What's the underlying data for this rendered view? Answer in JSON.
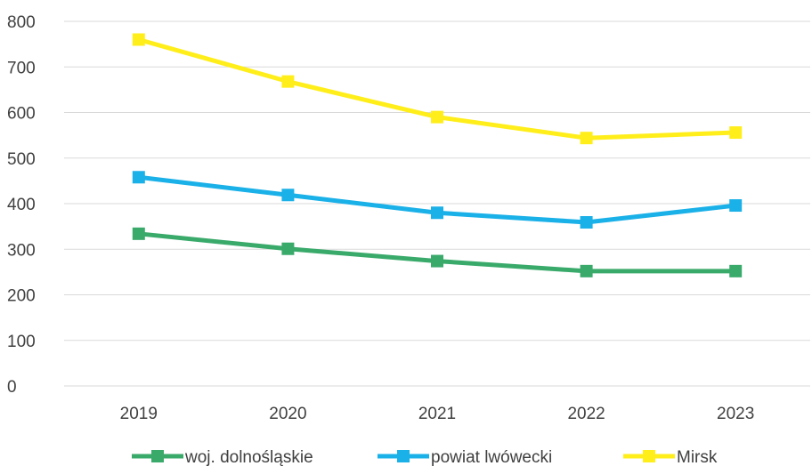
{
  "chart_data": {
    "type": "line",
    "categories": [
      "2019",
      "2020",
      "2021",
      "2022",
      "2023"
    ],
    "series": [
      {
        "name": "woj. dolnośląskie",
        "color": "#3aaa6b",
        "values": [
          334,
          301,
          274,
          252,
          252
        ]
      },
      {
        "name": "powiat lwówecki",
        "color": "#1ab0e8",
        "values": [
          458,
          419,
          380,
          359,
          396
        ]
      },
      {
        "name": "Mirsk",
        "color": "#ffee1a",
        "values": [
          760,
          668,
          590,
          544,
          556
        ]
      }
    ],
    "ylim": [
      0,
      800
    ],
    "yticks": [
      "0",
      "100",
      "200",
      "300",
      "400",
      "500",
      "600",
      "700",
      "800"
    ],
    "grid": "horizontal",
    "legend": "bottom",
    "marker": "square"
  }
}
